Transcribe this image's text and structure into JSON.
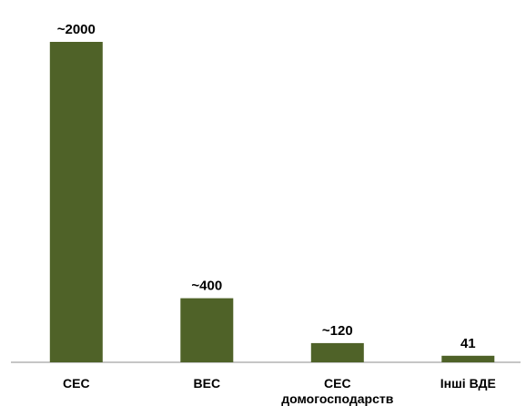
{
  "chart_data": {
    "type": "bar",
    "categories": [
      [
        "СЕС"
      ],
      [
        "ВЕС"
      ],
      [
        "СЕС",
        "домогосподарств"
      ],
      [
        "Інші ВДЕ"
      ]
    ],
    "values": [
      2000,
      400,
      120,
      41
    ],
    "data_labels": [
      "~2000",
      "~400",
      "~120",
      "41"
    ],
    "title": "",
    "xlabel": "",
    "ylabel": "",
    "ylim": [
      0,
      2000
    ],
    "grid": false,
    "legend": "none",
    "bar_color": "#4f6228",
    "axis_color": "#8c8c8c"
  }
}
